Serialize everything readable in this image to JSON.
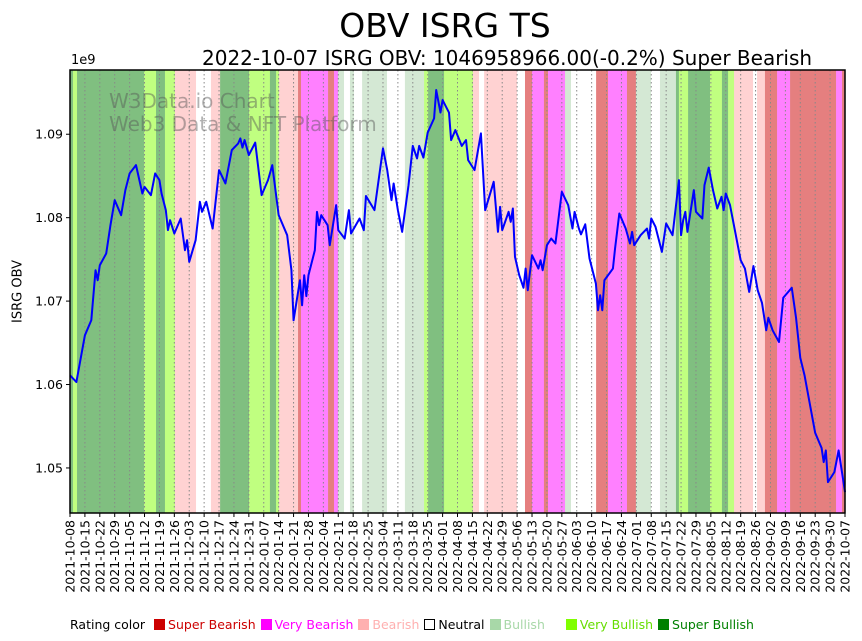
{
  "title": "OBV ISRG TS",
  "subtitle": "2022-10-07 ISRG OBV: 1046958966.00(-0.2%) Super Bearish",
  "watermark": [
    "W3Data.io Chart",
    "Web3 Data & NFT Platform"
  ],
  "legend": {
    "label": "Rating color",
    "items": [
      {
        "key": "super_bearish",
        "label": "Super Bearish",
        "color": "#cc0000",
        "text_color": "#cc0000"
      },
      {
        "key": "very_bearish",
        "label": "Very Bearish",
        "color": "#ff00ff",
        "text_color": "#ff00ff"
      },
      {
        "key": "bearish",
        "label": "Bearish",
        "color": "#ffb0b0",
        "text_color": "#ffb0b0"
      },
      {
        "key": "neutral",
        "label": "Neutral",
        "color": "#ffffff",
        "text_color": "#000000"
      },
      {
        "key": "bullish",
        "label": "Bullish",
        "color": "#a8d8a8",
        "text_color": "#a8d8a8"
      },
      {
        "key": "very_bullish",
        "label": "Very Bullish",
        "color": "#80ff00",
        "text_color": "#66dd00"
      },
      {
        "key": "super_bullish",
        "label": "Super Bullish",
        "color": "#008000",
        "text_color": "#008000"
      }
    ]
  },
  "band_colors": {
    "super_bearish": "#e57f7f",
    "very_bearish": "#ff80ff",
    "bearish": "#ffd2d2",
    "neutral": "#ffffff",
    "bullish": "#d4e8d4",
    "very_bullish": "#c0ff80",
    "super_bullish": "#80bf80"
  },
  "chart_data": {
    "type": "line",
    "title": "OBV ISRG TS",
    "xlabel": "",
    "ylabel": "ISRG OBV",
    "y_multiplier_label": "1e9",
    "start_date": "2021-10-08",
    "x_unit": "days since start_date",
    "xlim": [
      0,
      364
    ],
    "ylim": [
      1.0446,
      1.0977
    ],
    "yticks": [
      1.05,
      1.06,
      1.07,
      1.08,
      1.09
    ],
    "ytick_labels": [
      "1.05",
      "1.06",
      "1.07",
      "1.08",
      "1.09"
    ],
    "xtick_days_step": 7,
    "xtick_labels": [
      "2021-10-08",
      "2021-10-15",
      "2021-10-22",
      "2021-10-29",
      "2021-11-05",
      "2021-11-12",
      "2021-11-19",
      "2021-11-26",
      "2021-12-03",
      "2021-12-10",
      "2021-12-17",
      "2021-12-24",
      "2021-12-31",
      "2022-01-07",
      "2022-01-14",
      "2022-01-21",
      "2022-01-28",
      "2022-02-04",
      "2022-02-11",
      "2022-02-18",
      "2022-02-25",
      "2022-03-04",
      "2022-03-11",
      "2022-03-18",
      "2022-03-25",
      "2022-04-01",
      "2022-04-08",
      "2022-04-15",
      "2022-04-22",
      "2022-04-29",
      "2022-05-06",
      "2022-05-13",
      "2022-05-20",
      "2022-05-27",
      "2022-06-03",
      "2022-06-10",
      "2022-06-17",
      "2022-06-24",
      "2022-07-01",
      "2022-07-08",
      "2022-07-15",
      "2022-07-22",
      "2022-07-29",
      "2022-08-05",
      "2022-08-12",
      "2022-08-19",
      "2022-08-26",
      "2022-09-02",
      "2022-09-09",
      "2022-09-16",
      "2022-09-23",
      "2022-09-30",
      "2022-10-07"
    ],
    "grid": "vertical dotted",
    "series": [
      {
        "name": "ISRG OBV",
        "color": "#0000ff",
        "x": [
          0,
          3,
          7,
          10,
          12,
          13,
          14,
          17,
          19,
          21,
          24,
          26,
          28,
          31,
          34,
          35,
          38,
          40,
          42,
          43,
          45,
          46,
          47,
          49,
          52,
          54,
          55,
          56,
          59,
          61,
          62,
          64,
          67,
          70,
          73,
          76,
          79,
          80,
          81,
          82,
          84,
          87,
          90,
          93,
          95,
          98,
          102,
          104,
          105,
          108,
          109,
          110,
          111,
          112,
          115,
          116,
          117,
          118,
          121,
          122,
          125,
          126,
          129,
          131,
          132,
          136,
          138,
          139,
          143,
          147,
          149,
          151,
          152,
          154,
          156,
          159,
          161,
          163,
          164,
          166,
          168,
          171,
          172,
          174,
          175,
          178,
          179,
          181,
          184,
          186,
          187,
          190,
          193,
          195,
          199,
          201,
          202,
          203,
          206,
          207,
          208,
          209,
          211,
          213,
          214,
          215,
          217,
          220,
          221,
          222,
          224,
          226,
          228,
          231,
          234,
          236,
          237,
          239,
          240,
          242,
          244,
          247,
          248,
          249,
          250,
          251,
          255,
          256,
          258,
          261,
          263,
          264,
          265,
          268,
          271,
          272,
          273,
          275,
          278,
          280,
          283,
          286,
          287,
          288,
          289,
          290,
          293,
          294,
          297,
          298,
          300,
          302,
          304,
          306,
          307,
          308,
          310,
          315,
          317,
          319,
          321,
          323,
          325,
          327,
          328,
          330,
          333,
          335,
          339,
          341,
          343,
          345,
          350,
          353,
          354,
          355,
          356,
          359,
          361,
          363,
          364
        ],
        "values": [
          1.0611,
          1.0603,
          1.0659,
          1.0677,
          1.0737,
          1.0725,
          1.0743,
          1.0757,
          1.0791,
          1.0821,
          1.0803,
          1.0833,
          1.0853,
          1.0863,
          1.0829,
          1.0837,
          1.0827,
          1.0853,
          1.0845,
          1.0829,
          1.0809,
          1.0785,
          1.0797,
          1.0781,
          1.0799,
          1.0761,
          1.0773,
          1.0747,
          1.0773,
          1.0819,
          1.0807,
          1.0819,
          1.0787,
          1.0857,
          1.0841,
          1.0881,
          1.0889,
          1.0895,
          1.0884,
          1.0893,
          1.0875,
          1.089,
          1.0827,
          1.0845,
          1.0863,
          1.0803,
          1.0779,
          1.0737,
          1.0677,
          1.0725,
          1.0695,
          1.0731,
          1.0706,
          1.0731,
          1.0761,
          1.0807,
          1.0791,
          1.0803,
          1.0791,
          1.0767,
          1.0815,
          1.0785,
          1.0775,
          1.0809,
          1.0781,
          1.0799,
          1.0785,
          1.0826,
          1.0809,
          1.0883,
          1.0857,
          1.0821,
          1.0841,
          1.0809,
          1.0783,
          1.0839,
          1.0886,
          1.0871,
          1.0886,
          1.0872,
          1.0902,
          1.0919,
          1.0953,
          1.0926,
          1.0941,
          1.0926,
          1.0893,
          1.0905,
          1.0886,
          1.0893,
          1.0869,
          1.0857,
          1.0901,
          1.0809,
          1.0843,
          1.0783,
          1.0813,
          1.0785,
          1.0807,
          1.0795,
          1.0811,
          1.0753,
          1.0731,
          1.0716,
          1.0739,
          1.0713,
          1.0755,
          1.0739,
          1.0749,
          1.0737,
          1.0767,
          1.0775,
          1.0769,
          1.0831,
          1.0815,
          1.0787,
          1.0807,
          1.0787,
          1.078,
          1.0792,
          1.0751,
          1.0721,
          1.0689,
          1.0707,
          1.0689,
          1.0725,
          1.0739,
          1.0763,
          1.0805,
          1.0787,
          1.0769,
          1.0783,
          1.0767,
          1.0779,
          1.0787,
          1.0775,
          1.0799,
          1.0789,
          1.0759,
          1.0793,
          1.0779,
          1.0845,
          1.0779,
          1.0797,
          1.0807,
          1.0783,
          1.0833,
          1.0807,
          1.0799,
          1.0839,
          1.086,
          1.0833,
          1.0811,
          1.0825,
          1.0809,
          1.0829,
          1.0815,
          1.0749,
          1.0739,
          1.0711,
          1.0742,
          1.0713,
          1.0698,
          1.0665,
          1.068,
          1.0665,
          1.0651,
          1.0704,
          1.0716,
          1.068,
          1.0632,
          1.0611,
          1.0542,
          1.0524,
          1.0507,
          1.0521,
          1.0483,
          1.0495,
          1.0521,
          1.0488,
          1.0471
        ]
      }
    ],
    "rating_bands": [
      [
        0,
        1.4,
        "super_bullish"
      ],
      [
        1.4,
        3.3,
        "very_bullish"
      ],
      [
        3.3,
        34.8,
        "super_bullish"
      ],
      [
        34.8,
        40.4,
        "very_bullish"
      ],
      [
        40.4,
        44.6,
        "super_bullish"
      ],
      [
        44.6,
        49.3,
        "very_bullish"
      ],
      [
        49.3,
        59.2,
        "bearish"
      ],
      [
        59.2,
        66.2,
        "neutral"
      ],
      [
        66.2,
        70.5,
        "bearish"
      ],
      [
        70.5,
        84.1,
        "super_bullish"
      ],
      [
        84.1,
        93.9,
        "very_bullish"
      ],
      [
        93.9,
        96.8,
        "super_bullish"
      ],
      [
        96.8,
        98.2,
        "very_bullish"
      ],
      [
        98.2,
        107.1,
        "bearish"
      ],
      [
        107.1,
        108.5,
        "super_bearish"
      ],
      [
        108.5,
        121.2,
        "very_bearish"
      ],
      [
        121.2,
        124,
        "super_bearish"
      ],
      [
        124,
        125.9,
        "very_bearish"
      ],
      [
        125.9,
        128.7,
        "bullish"
      ],
      [
        128.7,
        131.5,
        "neutral"
      ],
      [
        131.5,
        133.4,
        "bullish"
      ],
      [
        133.4,
        137.2,
        "neutral"
      ],
      [
        137.2,
        148.9,
        "bullish"
      ],
      [
        148.9,
        157.3,
        "neutral"
      ],
      [
        157.3,
        166.3,
        "bullish"
      ],
      [
        166.3,
        168.2,
        "very_bullish"
      ],
      [
        168.2,
        175.7,
        "super_bullish"
      ],
      [
        175.7,
        189.3,
        "very_bullish"
      ],
      [
        189.3,
        192.1,
        "bearish"
      ],
      [
        192.1,
        194.5,
        "neutral"
      ],
      [
        194.5,
        210,
        "bearish"
      ],
      [
        210,
        213.7,
        "neutral"
      ],
      [
        213.7,
        217,
        "super_bearish"
      ],
      [
        217,
        222.6,
        "very_bearish"
      ],
      [
        222.6,
        224.5,
        "super_bearish"
      ],
      [
        224.5,
        232.5,
        "very_bearish"
      ],
      [
        232.5,
        235.3,
        "bullish"
      ],
      [
        235.3,
        247.1,
        "neutral"
      ],
      [
        247.1,
        252.7,
        "super_bearish"
      ],
      [
        252.7,
        261.6,
        "very_bearish"
      ],
      [
        261.6,
        265.8,
        "super_bearish"
      ],
      [
        265.8,
        272.9,
        "bullish"
      ],
      [
        272.9,
        277.1,
        "neutral"
      ],
      [
        277.1,
        284.6,
        "bullish"
      ],
      [
        284.6,
        286,
        "super_bullish"
      ],
      [
        286,
        290.3,
        "very_bullish"
      ],
      [
        290.3,
        300.6,
        "super_bullish"
      ],
      [
        300.6,
        306.2,
        "very_bullish"
      ],
      [
        306.2,
        309.1,
        "super_bullish"
      ],
      [
        309.1,
        311.9,
        "very_bullish"
      ],
      [
        311.9,
        320.8,
        "bearish"
      ],
      [
        320.8,
        322.7,
        "neutral"
      ],
      [
        322.7,
        326.4,
        "bearish"
      ],
      [
        326.4,
        332.1,
        "super_bearish"
      ],
      [
        332.1,
        338.2,
        "very_bearish"
      ],
      [
        338.2,
        359.8,
        "super_bearish"
      ],
      [
        359.8,
        362.6,
        "very_bearish"
      ],
      [
        362.6,
        364,
        "super_bearish"
      ]
    ]
  }
}
